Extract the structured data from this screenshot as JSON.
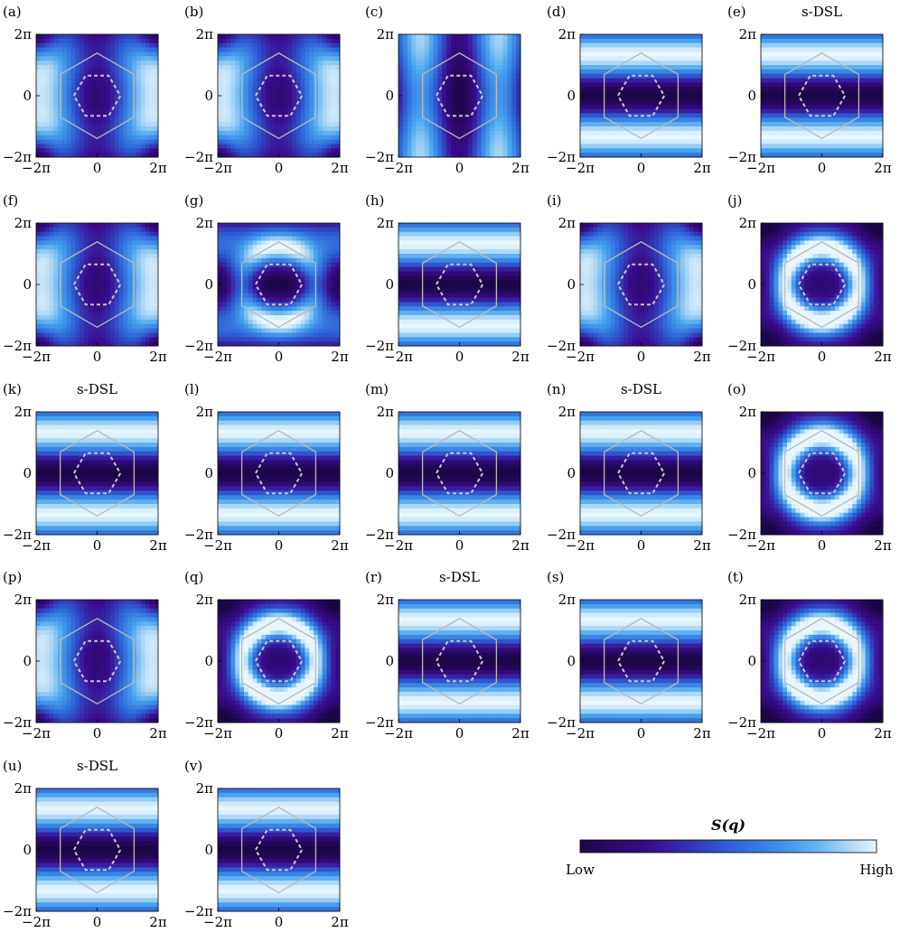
{
  "colormap": {
    "stops": [
      "#1b0747",
      "#3a0c8e",
      "#2d5fd6",
      "#47a4ee",
      "#e8f6fc"
    ],
    "hexagon_color": "#b9b9b9",
    "dashed_hexagon_color": "#c9c9c9"
  },
  "chart_data": {
    "type": "heatmap",
    "quantity": "S(q)",
    "x_ticks": [
      "−2π",
      "0",
      "2π"
    ],
    "y_ticks": [
      "2π",
      "0",
      "−2π"
    ],
    "xlim": [
      "-2π",
      "2π"
    ],
    "ylim": [
      "-2π",
      "2π"
    ],
    "panels": [
      {
        "label": "(a)",
        "title": "",
        "pattern": "vertical-peaked"
      },
      {
        "label": "(b)",
        "title": "",
        "pattern": "vertical-peaked"
      },
      {
        "label": "(c)",
        "title": "",
        "pattern": "vertical-stripes"
      },
      {
        "label": "(d)",
        "title": "",
        "pattern": "horizontal-stripes"
      },
      {
        "label": "(e)",
        "title": "s-DSL",
        "pattern": "horizontal-stripes"
      },
      {
        "label": "(f)",
        "title": "",
        "pattern": "vertical-peaked"
      },
      {
        "label": "(g)",
        "title": "",
        "pattern": "hex-mixed"
      },
      {
        "label": "(h)",
        "title": "",
        "pattern": "horizontal-stripes"
      },
      {
        "label": "(i)",
        "title": "",
        "pattern": "vertical-peaked"
      },
      {
        "label": "(j)",
        "title": "",
        "pattern": "hex-ring"
      },
      {
        "label": "(k)",
        "title": "s-DSL",
        "pattern": "horizontal-stripes"
      },
      {
        "label": "(l)",
        "title": "",
        "pattern": "horizontal-stripes"
      },
      {
        "label": "(m)",
        "title": "",
        "pattern": "horizontal-stripes"
      },
      {
        "label": "(n)",
        "title": "s-DSL",
        "pattern": "horizontal-stripes"
      },
      {
        "label": "(o)",
        "title": "",
        "pattern": "hex-ring"
      },
      {
        "label": "(p)",
        "title": "",
        "pattern": "vertical-peaked"
      },
      {
        "label": "(q)",
        "title": "",
        "pattern": "hex-ring"
      },
      {
        "label": "(r)",
        "title": "s-DSL",
        "pattern": "horizontal-stripes"
      },
      {
        "label": "(s)",
        "title": "",
        "pattern": "horizontal-stripes"
      },
      {
        "label": "(t)",
        "title": "",
        "pattern": "hex-ring"
      },
      {
        "label": "(u)",
        "title": "s-DSL",
        "pattern": "horizontal-stripes"
      },
      {
        "label": "(v)",
        "title": "",
        "pattern": "horizontal-stripes"
      }
    ],
    "colorbar": {
      "title": "S(q)",
      "low_label": "Low",
      "high_label": "High"
    }
  }
}
